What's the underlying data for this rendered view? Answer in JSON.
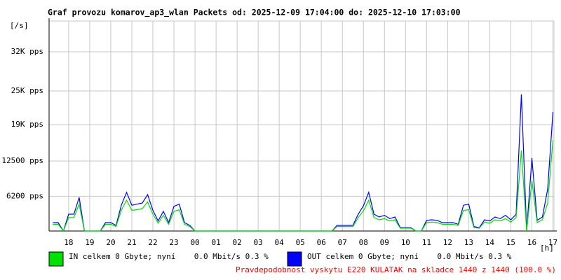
{
  "chart_data": {
    "type": "line",
    "title": "Graf provozu komarov_ap3_wlan Packets od: 2025-12-09 17:04:00 do: 2025-12-10 17:03:00",
    "y_label": "[/s]",
    "x_label": "[h]",
    "footer": "Pravdepodobnost vyskytu E220 KULATAK na skladce 1440 z 1440 (100.0 %)",
    "grid": true,
    "xlim": [
      17.07,
      41.05
    ],
    "xticks": [
      {
        "value": 18,
        "label": "18"
      },
      {
        "value": 19,
        "label": "19"
      },
      {
        "value": 20,
        "label": "20"
      },
      {
        "value": 21,
        "label": "21"
      },
      {
        "value": 22,
        "label": "22"
      },
      {
        "value": 23,
        "label": "23"
      },
      {
        "value": 24,
        "label": "00"
      },
      {
        "value": 25,
        "label": "01"
      },
      {
        "value": 26,
        "label": "02"
      },
      {
        "value": 27,
        "label": "03"
      },
      {
        "value": 28,
        "label": "04"
      },
      {
        "value": 29,
        "label": "05"
      },
      {
        "value": 30,
        "label": "06"
      },
      {
        "value": 31,
        "label": "07"
      },
      {
        "value": 32,
        "label": "08"
      },
      {
        "value": 33,
        "label": "09"
      },
      {
        "value": 34,
        "label": "10"
      },
      {
        "value": 35,
        "label": "11"
      },
      {
        "value": 36,
        "label": "12"
      },
      {
        "value": 37,
        "label": "13"
      },
      {
        "value": 38,
        "label": "14"
      },
      {
        "value": 39,
        "label": "15"
      },
      {
        "value": 40,
        "label": "16"
      },
      {
        "value": 41,
        "label": "17"
      }
    ],
    "ylim": [
      0,
      37500
    ],
    "yticks": [
      {
        "value": 6200,
        "label": "6200 pps"
      },
      {
        "value": 12500,
        "label": "12500 pps"
      },
      {
        "value": 19000,
        "label": "19K pps"
      },
      {
        "value": 25000,
        "label": "25K pps"
      },
      {
        "value": 32000,
        "label": "32K pps"
      }
    ],
    "x": [
      17.25,
      17.5,
      17.75,
      18,
      18.25,
      18.5,
      18.75,
      19,
      19.25,
      19.5,
      19.75,
      20,
      20.25,
      20.5,
      20.75,
      21,
      21.25,
      21.5,
      21.75,
      22,
      22.25,
      22.5,
      22.75,
      23,
      23.25,
      23.5,
      23.75,
      24,
      24.25,
      24.5,
      24.75,
      25,
      25.25,
      25.5,
      25.75,
      26,
      26.25,
      26.5,
      26.75,
      27,
      27.25,
      27.5,
      27.75,
      28,
      28.25,
      28.5,
      28.75,
      29,
      29.25,
      29.5,
      29.75,
      30,
      30.25,
      30.5,
      30.75,
      31,
      31.25,
      31.5,
      31.75,
      32,
      32.25,
      32.5,
      32.75,
      33,
      33.25,
      33.5,
      33.75,
      34,
      34.25,
      34.5,
      34.75,
      35,
      35.25,
      35.5,
      35.75,
      36,
      36.25,
      36.5,
      36.75,
      37,
      37.25,
      37.5,
      37.75,
      38,
      38.25,
      38.5,
      38.75,
      39,
      39.25,
      39.5,
      39.75,
      40,
      40.25,
      40.5,
      40.75,
      41
    ],
    "series": [
      {
        "name": "IN celkem 0 Gbyte; nyní    0.0 Mbit/s 0.3 %",
        "color": "#00e000",
        "values": [
          1200,
          1200,
          0,
          2400,
          2400,
          4800,
          0,
          0,
          0,
          0,
          1200,
          1200,
          800,
          3700,
          5500,
          3700,
          3800,
          4000,
          5200,
          3000,
          1400,
          2800,
          1200,
          3500,
          3800,
          1200,
          800,
          0,
          0,
          0,
          0,
          0,
          0,
          0,
          0,
          0,
          0,
          0,
          0,
          0,
          0,
          0,
          0,
          0,
          0,
          0,
          0,
          0,
          0,
          0,
          0,
          0,
          0,
          0,
          800,
          800,
          800,
          800,
          2400,
          3600,
          5500,
          2400,
          2000,
          2200,
          1800,
          2000,
          500,
          500,
          500,
          0,
          0,
          1500,
          1600,
          1500,
          1200,
          1200,
          1200,
          1000,
          3700,
          3800,
          600,
          500,
          1600,
          1400,
          2000,
          1800,
          2200,
          1600,
          2400,
          14400,
          0,
          9000,
          1500,
          2000,
          5000,
          16250
        ]
      },
      {
        "name": "OUT celkem 0 Gbyte; nyní    0.0 Mbit/s 0.3 %",
        "color": "#0000ff",
        "values": [
          1500,
          1500,
          0,
          3000,
          3000,
          6000,
          0,
          0,
          0,
          0,
          1500,
          1500,
          1000,
          4600,
          6900,
          4600,
          4800,
          5000,
          6500,
          3700,
          1800,
          3500,
          1500,
          4400,
          4800,
          1500,
          1000,
          0,
          0,
          0,
          0,
          0,
          0,
          0,
          0,
          0,
          0,
          0,
          0,
          0,
          0,
          0,
          0,
          0,
          0,
          0,
          0,
          0,
          0,
          0,
          0,
          0,
          0,
          0,
          1000,
          1000,
          1000,
          1000,
          3000,
          4500,
          6900,
          3000,
          2500,
          2800,
          2200,
          2500,
          600,
          600,
          600,
          0,
          0,
          1900,
          2000,
          1900,
          1500,
          1500,
          1500,
          1200,
          4600,
          4800,
          800,
          600,
          2000,
          1800,
          2500,
          2200,
          2800,
          2000,
          3000,
          24400,
          0,
          13000,
          1900,
          2500,
          7500,
          21250
        ]
      }
    ]
  }
}
